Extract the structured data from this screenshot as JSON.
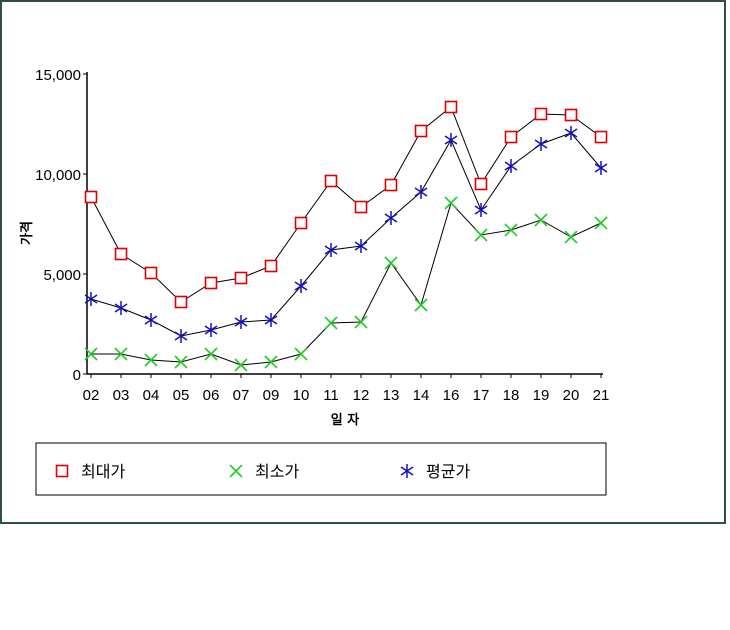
{
  "chart_data": {
    "type": "line",
    "xlabel": "일 자",
    "ylabel": "가격",
    "ylim": [
      0,
      15000
    ],
    "yticks": [
      "0",
      "5,000",
      "10,000",
      "15,000"
    ],
    "categories": [
      "02",
      "03",
      "04",
      "05",
      "06",
      "07",
      "09",
      "10",
      "11",
      "12",
      "13",
      "14",
      "16",
      "17",
      "18",
      "19",
      "20",
      "21"
    ],
    "grid": false,
    "legend_position": "bottom",
    "series": [
      {
        "name": "최대가",
        "marker": "square",
        "marker_color": "#e00000",
        "values": [
          8850,
          6000,
          5050,
          3600,
          4550,
          4800,
          5400,
          7550,
          9650,
          8350,
          9450,
          12150,
          13350,
          9500,
          11850,
          13000,
          12950,
          11850
        ]
      },
      {
        "name": "최소가",
        "marker": "x",
        "marker_color": "#22cc22",
        "values": [
          1000,
          1000,
          700,
          600,
          1000,
          450,
          600,
          1000,
          2550,
          2600,
          5550,
          3450,
          8550,
          6950,
          7200,
          7700,
          6850,
          7550
        ]
      },
      {
        "name": "평균가",
        "marker": "asterisk",
        "marker_color": "#1010c0",
        "values": [
          3750,
          3300,
          2700,
          1900,
          2200,
          2600,
          2700,
          4400,
          6200,
          6400,
          7800,
          9100,
          11700,
          8200,
          10400,
          11500,
          12050,
          10300
        ]
      }
    ]
  }
}
